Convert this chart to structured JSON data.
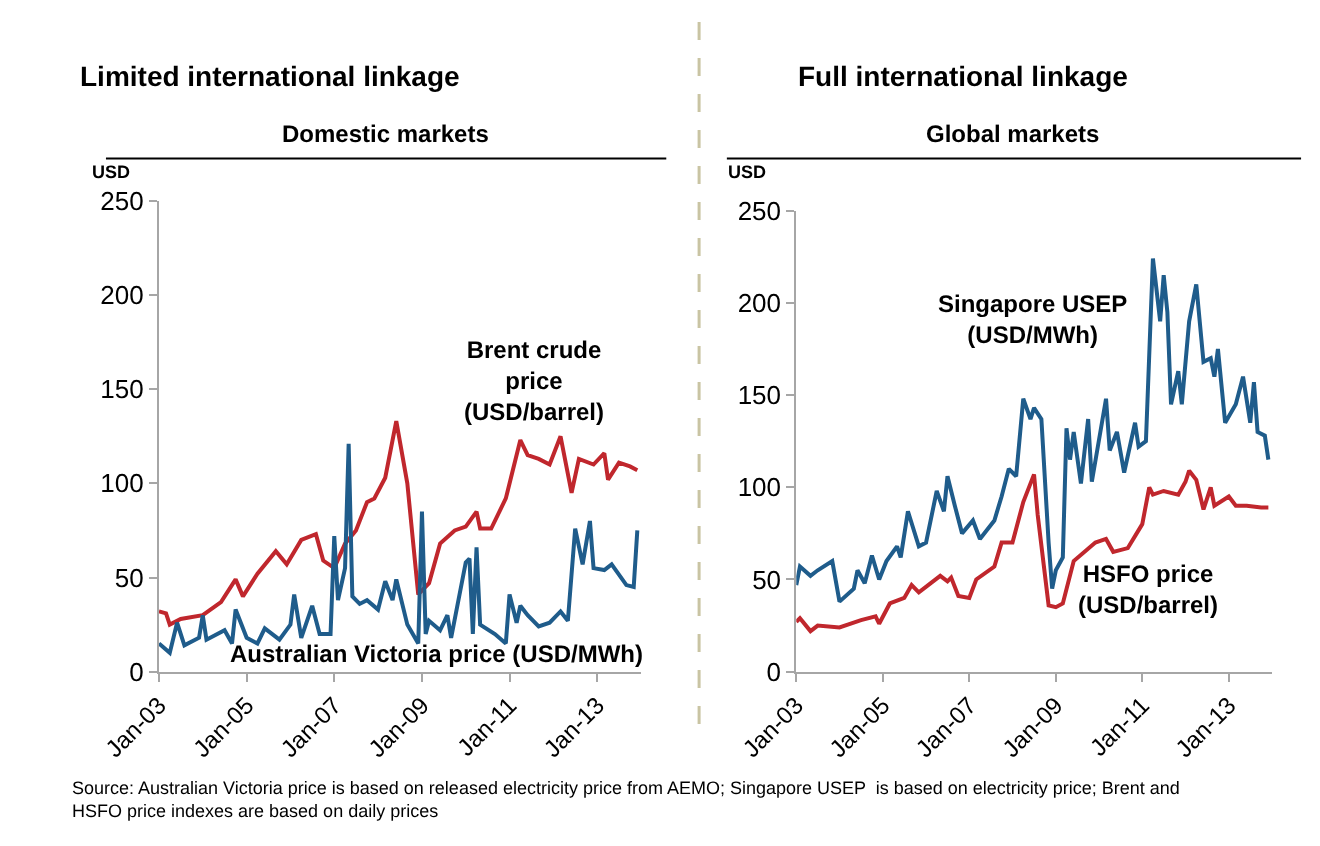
{
  "chart_data": [
    {
      "type": "line",
      "title": "Limited international linkage",
      "subtitle": "Domestic markets",
      "ylabel": "USD",
      "ylim": [
        0,
        250
      ],
      "yticks": [
        0,
        50,
        100,
        150,
        200,
        250
      ],
      "xlim": [
        "2003-01",
        "2014-01"
      ],
      "xticks": [
        {
          "value": "2003-01",
          "label": "Jan-03"
        },
        {
          "value": "2005-01",
          "label": "Jan-05"
        },
        {
          "value": "2007-01",
          "label": "Jan-07"
        },
        {
          "value": "2009-01",
          "label": "Jan-09"
        },
        {
          "value": "2011-01",
          "label": "Jan-11"
        },
        {
          "value": "2013-01",
          "label": "Jan-13"
        }
      ],
      "legend": false,
      "marker": "none",
      "line_style": "solid",
      "annotations": [
        "Source: Australian Victoria price is based on released electricity price from AEMO; Singapore USEP  is based on electricity price; Brent and HSFO price indexes are based on daily prices"
      ],
      "series": [
        {
          "name": "Brent crude price (USD/barrel)",
          "color": "#c0272d",
          "x": [
            "2003-01",
            "2003-03",
            "2003-04",
            "2003-07",
            "2004-01",
            "2004-06",
            "2004-10",
            "2004-12",
            "2005-04",
            "2005-09",
            "2005-12",
            "2006-04",
            "2006-08",
            "2006-10",
            "2007-01",
            "2007-04",
            "2007-07",
            "2007-10",
            "2007-12",
            "2008-03",
            "2008-06",
            "2008-09",
            "2008-12",
            "2009-03",
            "2009-06",
            "2009-10",
            "2010-01",
            "2010-04",
            "2010-05",
            "2010-08",
            "2010-12",
            "2011-04",
            "2011-06",
            "2011-09",
            "2011-12",
            "2012-03",
            "2012-06",
            "2012-08",
            "2012-12",
            "2013-03",
            "2013-04",
            "2013-07",
            "2013-10",
            "2013-12"
          ],
          "values": [
            32,
            31,
            25,
            28,
            30,
            37,
            49,
            40,
            52,
            64,
            57,
            70,
            73,
            59,
            55,
            68,
            75,
            90,
            92,
            103,
            133,
            100,
            41,
            47,
            68,
            75,
            77,
            85,
            76,
            76,
            92,
            123,
            115,
            113,
            110,
            125,
            95,
            113,
            110,
            116,
            102,
            111,
            109,
            107
          ]
        },
        {
          "name": "Australian Victoria price (USD/MWh)",
          "color": "#1f5c8b",
          "x": [
            "2003-01",
            "2003-04",
            "2003-06",
            "2003-08",
            "2003-12",
            "2004-01",
            "2004-02",
            "2004-07",
            "2004-09",
            "2004-10",
            "2005-01",
            "2005-04",
            "2005-06",
            "2005-10",
            "2006-01",
            "2006-02",
            "2006-04",
            "2006-07",
            "2006-09",
            "2006-12",
            "2007-01",
            "2007-02",
            "2007-04",
            "2007-05",
            "2007-06",
            "2007-08",
            "2007-10",
            "2008-01",
            "2008-03",
            "2008-05",
            "2008-06",
            "2008-09",
            "2008-12",
            "2009-01",
            "2009-02",
            "2009-03",
            "2009-06",
            "2009-08",
            "2009-09",
            "2010-01",
            "2010-02",
            "2010-03",
            "2010-04",
            "2010-05",
            "2010-09",
            "2010-12",
            "2011-01",
            "2011-03",
            "2011-04",
            "2011-06",
            "2011-09",
            "2011-12",
            "2012-03",
            "2012-05",
            "2012-07",
            "2012-09",
            "2012-11",
            "2012-12",
            "2013-03",
            "2013-05",
            "2013-09",
            "2013-11",
            "2013-12"
          ],
          "values": [
            15,
            10,
            26,
            14,
            18,
            30,
            17,
            22,
            15,
            33,
            18,
            15,
            23,
            17,
            25,
            41,
            18,
            35,
            20,
            20,
            72,
            38,
            55,
            121,
            40,
            36,
            38,
            33,
            48,
            38,
            49,
            25,
            15,
            85,
            20,
            27,
            22,
            30,
            18,
            58,
            60,
            20,
            66,
            25,
            20,
            15,
            41,
            26,
            35,
            30,
            24,
            26,
            32,
            27,
            76,
            57,
            80,
            55,
            54,
            57,
            46,
            45,
            75
          ]
        }
      ]
    },
    {
      "type": "line",
      "title": "Full international linkage",
      "subtitle": "Global markets",
      "ylabel": "USD",
      "ylim": [
        0,
        250
      ],
      "yticks": [
        0,
        50,
        100,
        150,
        200,
        250
      ],
      "xlim": [
        "2003-01",
        "2014-01"
      ],
      "xticks": [
        {
          "value": "2003-01",
          "label": "Jan-03"
        },
        {
          "value": "2005-01",
          "label": "Jan-05"
        },
        {
          "value": "2007-01",
          "label": "Jan-07"
        },
        {
          "value": "2009-01",
          "label": "Jan-09"
        },
        {
          "value": "2011-01",
          "label": "Jan-11"
        },
        {
          "value": "2013-01",
          "label": "Jan-13"
        }
      ],
      "legend": false,
      "marker": "none",
      "line_style": "solid",
      "series": [
        {
          "name": "Singapore USEP (USD/MWh)",
          "color": "#1f5c8b",
          "x": [
            "2003-01",
            "2003-02",
            "2003-05",
            "2003-07",
            "2003-11",
            "2004-01",
            "2004-05",
            "2004-06",
            "2004-08",
            "2004-10",
            "2004-12",
            "2005-02",
            "2005-05",
            "2005-06",
            "2005-08",
            "2005-11",
            "2006-01",
            "2006-04",
            "2006-06",
            "2006-07",
            "2006-09",
            "2006-11",
            "2007-02",
            "2007-04",
            "2007-08",
            "2007-10",
            "2007-12",
            "2008-02",
            "2008-04",
            "2008-06",
            "2008-07",
            "2008-09",
            "2008-11",
            "2008-12",
            "2009-01",
            "2009-03",
            "2009-04",
            "2009-05",
            "2009-06",
            "2009-08",
            "2009-10",
            "2009-11",
            "2010-03",
            "2010-04",
            "2010-06",
            "2010-08",
            "2010-11",
            "2010-12",
            "2011-02",
            "2011-04",
            "2011-06",
            "2011-07",
            "2011-08",
            "2011-09",
            "2011-11",
            "2011-12",
            "2012-02",
            "2012-04",
            "2012-06",
            "2012-08",
            "2012-09",
            "2012-10",
            "2012-12",
            "2013-03",
            "2013-05",
            "2013-07",
            "2013-08",
            "2013-09",
            "2013-11",
            "2013-12"
          ],
          "values": [
            47,
            57,
            52,
            55,
            60,
            38,
            45,
            55,
            48,
            63,
            50,
            60,
            68,
            62,
            87,
            68,
            70,
            98,
            87,
            106,
            90,
            75,
            82,
            72,
            82,
            95,
            110,
            106,
            148,
            137,
            143,
            137,
            70,
            45,
            55,
            62,
            132,
            115,
            130,
            102,
            137,
            103,
            148,
            120,
            130,
            108,
            135,
            122,
            125,
            224,
            190,
            215,
            195,
            145,
            163,
            145,
            190,
            210,
            168,
            170,
            160,
            175,
            135,
            145,
            160,
            135,
            157,
            130,
            128,
            115
          ]
        },
        {
          "name": "HSFO price (USD/barrel)",
          "color": "#c0272d",
          "x": [
            "2003-01",
            "2003-02",
            "2003-05",
            "2003-07",
            "2004-01",
            "2004-07",
            "2004-11",
            "2004-12",
            "2005-03",
            "2005-07",
            "2005-09",
            "2005-11",
            "2006-05",
            "2006-07",
            "2006-08",
            "2006-10",
            "2007-01",
            "2007-03",
            "2007-08",
            "2007-10",
            "2008-01",
            "2008-04",
            "2008-07",
            "2008-08",
            "2008-11",
            "2009-01",
            "2009-03",
            "2009-06",
            "2009-09",
            "2009-12",
            "2010-03",
            "2010-05",
            "2010-09",
            "2011-01",
            "2011-03",
            "2011-04",
            "2011-07",
            "2011-11",
            "2012-01",
            "2012-02",
            "2012-04",
            "2012-06",
            "2012-08",
            "2012-09",
            "2013-01",
            "2013-03",
            "2013-06",
            "2013-10",
            "2013-12"
          ],
          "values": [
            27,
            29,
            22,
            25,
            24,
            28,
            30,
            26,
            37,
            40,
            47,
            43,
            52,
            49,
            51,
            41,
            40,
            50,
            57,
            70,
            70,
            92,
            107,
            85,
            36,
            35,
            37,
            60,
            65,
            70,
            72,
            65,
            67,
            80,
            100,
            96,
            98,
            96,
            103,
            109,
            104,
            88,
            100,
            90,
            95,
            90,
            90,
            89,
            89
          ]
        }
      ]
    }
  ]
}
